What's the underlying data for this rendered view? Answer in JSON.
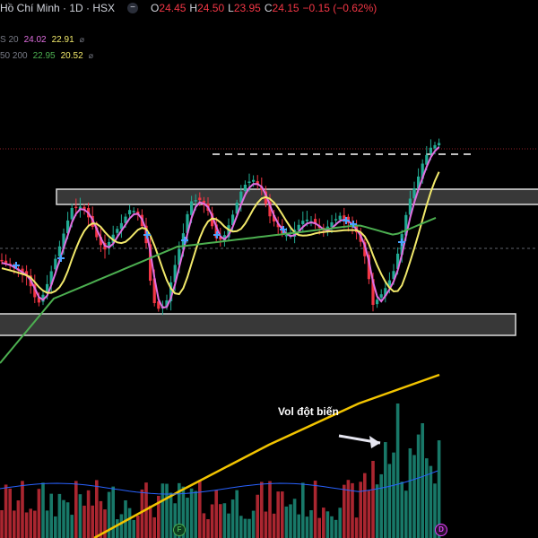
{
  "header": {
    "title": "Hồ Chí Minh · 1D · HSX",
    "ohlc": [
      {
        "key": "O",
        "value": "24.45"
      },
      {
        "key": "H",
        "value": "24.50"
      },
      {
        "key": "L",
        "value": "23.95"
      },
      {
        "key": "C",
        "value": "24.15"
      }
    ],
    "change": "−0.15 (−0.62%)",
    "collapse_icon": "minus-icon"
  },
  "indicators": [
    {
      "label": "S 20",
      "values": [
        {
          "v": "24.02",
          "color": "#e06ee0"
        },
        {
          "v": "22.91",
          "color": "#f2e96b"
        }
      ]
    },
    {
      "label": "50 200",
      "values": [
        {
          "v": "22.95",
          "color": "#4caf50"
        },
        {
          "v": "20.52",
          "color": "#f2e96b"
        }
      ]
    }
  ],
  "annotation": "Vol đột biến",
  "markers": {
    "f": "F",
    "d": "D"
  },
  "colors": {
    "up": "#22ab94",
    "down": "#f23645",
    "ma_fast": "#e06ee0",
    "ma_mid": "#f2e96b",
    "ma_50": "#4caf50",
    "ma_200": "#f2c400",
    "vol_ma": "#2962ff"
  }
}
